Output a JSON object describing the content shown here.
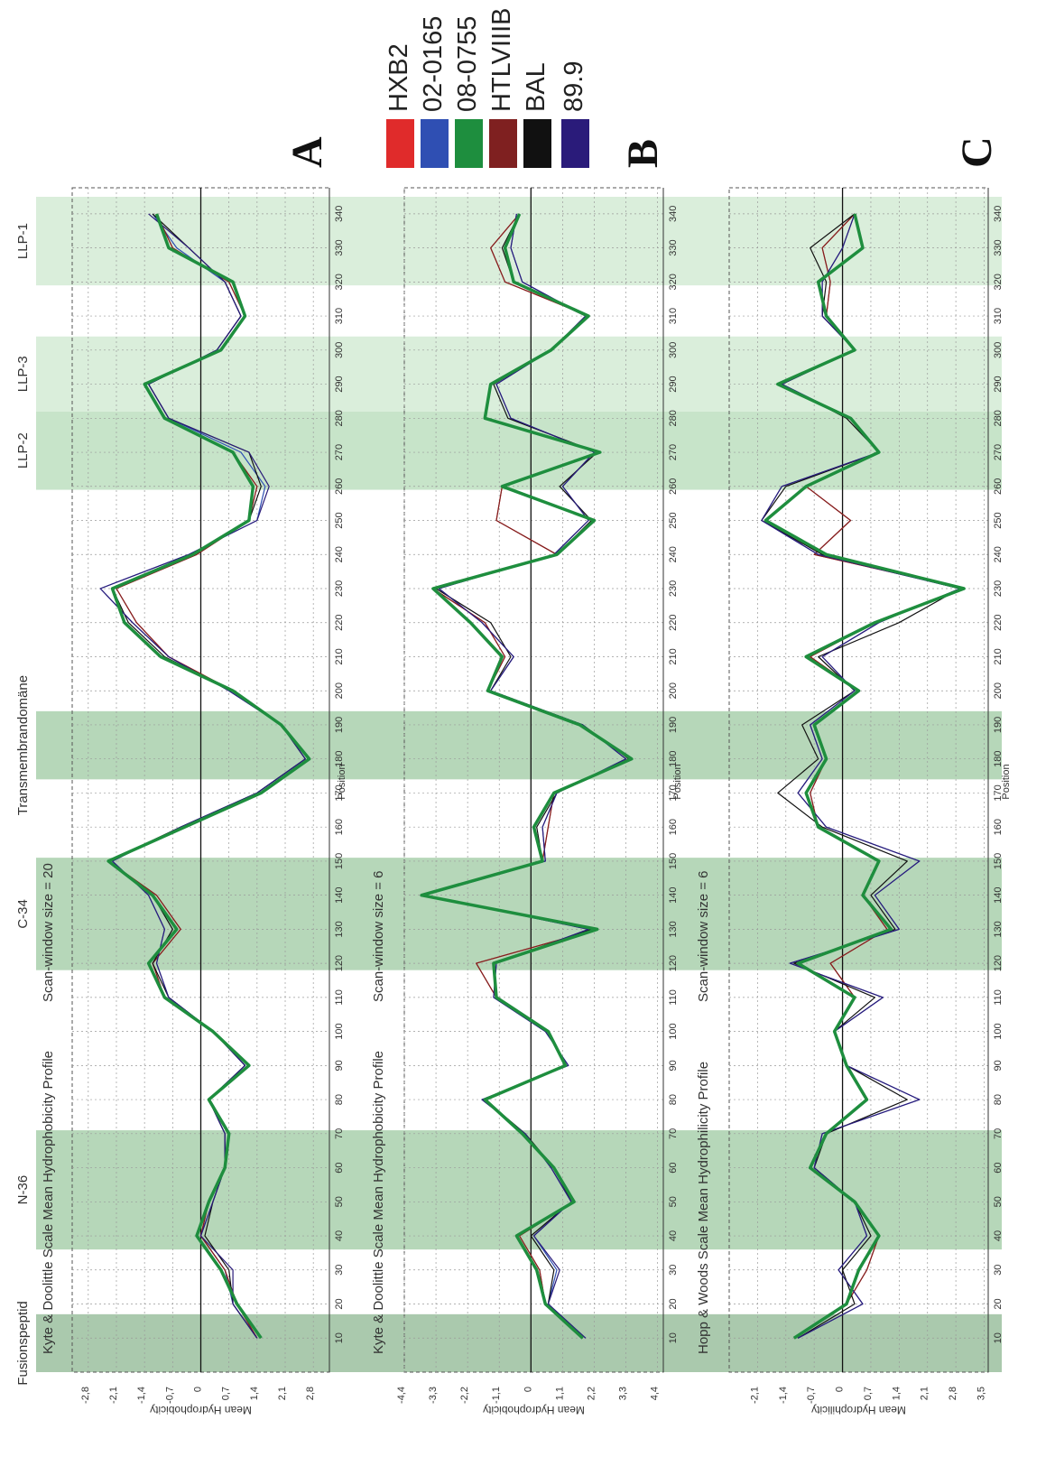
{
  "legend": {
    "entries": [
      {
        "label": "HXB2",
        "color": "#e02b2b"
      },
      {
        "label": "02-0165",
        "color": "#2f4fb3"
      },
      {
        "label": "08-0755",
        "color": "#1e8e3e"
      },
      {
        "label": "HTLVIIIB",
        "color": "#7f2020"
      },
      {
        "label": "BAL",
        "color": "#111111"
      },
      {
        "label": "89.9",
        "color": "#2a1b7a"
      }
    ]
  },
  "regions": [
    {
      "label": "Fusionspeptid",
      "start": 0,
      "end": 17,
      "color": "#9bbf9f"
    },
    {
      "label": "N-36",
      "start": 36,
      "end": 71,
      "color": "#a9d0ad"
    },
    {
      "label": "C-34",
      "start": 118,
      "end": 151,
      "color": "#a9d0ad"
    },
    {
      "label": "Transmembrandomäne",
      "start": 174,
      "end": 194,
      "color": "#a9d0ad"
    },
    {
      "label": "LLP-2",
      "start": 259,
      "end": 282,
      "color": "#bddfc0"
    },
    {
      "label": "LLP-3",
      "start": 282,
      "end": 304,
      "color": "#d4ebd5"
    },
    {
      "label": "LLP-1",
      "start": 319,
      "end": 345,
      "color": "#d4ebd5"
    }
  ],
  "chart_data": [
    {
      "panel": "A",
      "type": "line",
      "title": "Kyte & Doolittle Scale Mean Hydrophobicity Profile",
      "subtitle": "Scan-window size = 20",
      "xlabel": "Position",
      "ylabel": "Mean Hydrophobicity",
      "xlim": [
        0,
        345
      ],
      "ylim": [
        -3.2,
        3.2
      ],
      "yticks": [
        "2,8",
        "2,1",
        "1,4",
        "0,7",
        "0",
        "-0,7",
        "-1,4",
        "-2,1",
        "-2,8"
      ],
      "xticks": [
        10,
        20,
        30,
        40,
        50,
        60,
        70,
        80,
        90,
        100,
        110,
        120,
        130,
        140,
        150,
        160,
        170,
        180,
        190,
        200,
        210,
        220,
        230,
        240,
        250,
        260,
        270,
        280,
        290,
        300,
        310,
        320,
        330,
        340
      ],
      "grid": true,
      "x": [
        10,
        20,
        30,
        40,
        50,
        60,
        70,
        80,
        90,
        100,
        110,
        120,
        130,
        140,
        150,
        160,
        170,
        180,
        190,
        200,
        210,
        220,
        230,
        240,
        250,
        260,
        270,
        280,
        290,
        300,
        310,
        320,
        330,
        340
      ],
      "series": [
        {
          "name": "08-0755",
          "values": [
            1.5,
            0.9,
            0.5,
            -0.1,
            0.2,
            0.6,
            0.7,
            0.2,
            1.2,
            0.3,
            -0.9,
            -1.3,
            -0.6,
            -1.2,
            -2.3,
            -0.4,
            1.5,
            2.7,
            2.0,
            0.8,
            -1.0,
            -1.9,
            -2.2,
            -0.2,
            1.2,
            1.3,
            0.8,
            -0.9,
            -1.4,
            0.5,
            1.1,
            0.8,
            -0.8,
            -1.1
          ]
        },
        {
          "name": "02-0165",
          "values": [
            1.4,
            0.8,
            0.6,
            0.0,
            0.3,
            0.6,
            0.6,
            0.2,
            1.1,
            0.3,
            -0.8,
            -1.1,
            -0.9,
            -1.3,
            -2.2,
            -0.5,
            1.4,
            2.6,
            2.0,
            0.7,
            -0.8,
            -1.7,
            -2.5,
            -0.3,
            1.4,
            1.6,
            1.0,
            -0.8,
            -1.3,
            0.4,
            1.0,
            0.6,
            -0.6,
            -1.2
          ]
        },
        {
          "name": "HXB2",
          "values": [
            1.4,
            0.9,
            0.6,
            0.0,
            0.2,
            0.6,
            0.7,
            0.2,
            1.2,
            0.3,
            -0.9,
            -1.2,
            -0.5,
            -1.1,
            -2.3,
            -0.4,
            1.5,
            2.7,
            2.0,
            0.8,
            -0.8,
            -1.6,
            -2.1,
            -0.1,
            1.2,
            1.4,
            0.8,
            -0.9,
            -1.4,
            0.5,
            1.1,
            0.7,
            -0.7,
            -1.1
          ]
        },
        {
          "name": "HTLVIIIB",
          "values": [
            1.4,
            0.9,
            0.6,
            0.0,
            0.2,
            0.6,
            0.7,
            0.2,
            1.2,
            0.3,
            -0.9,
            -1.2,
            -0.5,
            -1.1,
            -2.3,
            -0.4,
            1.5,
            2.7,
            2.0,
            0.8,
            -0.8,
            -1.6,
            -2.1,
            -0.1,
            1.2,
            1.4,
            0.8,
            -0.9,
            -1.4,
            0.5,
            1.1,
            0.7,
            -0.7,
            -1.1
          ]
        },
        {
          "name": "BAL",
          "values": [
            1.4,
            0.8,
            0.7,
            0.1,
            0.3,
            0.6,
            0.6,
            0.2,
            1.1,
            0.3,
            -0.8,
            -1.2,
            -0.7,
            -1.2,
            -2.3,
            -0.5,
            1.4,
            2.6,
            2.0,
            0.8,
            -0.9,
            -1.8,
            -2.2,
            -0.2,
            1.2,
            1.5,
            1.2,
            -0.8,
            -1.3,
            0.4,
            1.0,
            0.6,
            -0.3,
            -1.2
          ]
        },
        {
          "name": "89.9",
          "values": [
            1.4,
            0.8,
            0.8,
            0.0,
            0.3,
            0.6,
            0.6,
            0.2,
            1.1,
            0.3,
            -0.8,
            -1.1,
            -0.9,
            -1.3,
            -2.2,
            -0.5,
            1.4,
            2.6,
            2.0,
            0.7,
            -0.8,
            -1.7,
            -2.5,
            -0.3,
            1.4,
            1.7,
            1.2,
            -0.8,
            -1.3,
            0.4,
            1.0,
            0.6,
            -0.3,
            -1.3
          ]
        }
      ]
    },
    {
      "panel": "B",
      "type": "line",
      "title": "Kyte & Doolittle Scale Mean Hydrophobicity Profile",
      "subtitle": "Scan-window size = 6",
      "xlabel": "Position",
      "ylabel": "Mean Hydrophobicity",
      "xlim": [
        0,
        345
      ],
      "ylim": [
        -4.4,
        4.6
      ],
      "yticks": [
        "4,4",
        "3,3",
        "2,2",
        "1,1",
        "0",
        "-1,1",
        "-2,2",
        "-3,3",
        "-4,4"
      ],
      "xticks": [
        10,
        20,
        30,
        40,
        50,
        60,
        70,
        80,
        90,
        100,
        110,
        120,
        130,
        140,
        150,
        160,
        170,
        180,
        190,
        200,
        210,
        220,
        230,
        240,
        250,
        260,
        270,
        280,
        290,
        300,
        310,
        320,
        330,
        340
      ],
      "grid": true,
      "x": [
        10,
        20,
        30,
        40,
        50,
        60,
        70,
        80,
        90,
        100,
        110,
        120,
        130,
        140,
        150,
        160,
        170,
        180,
        190,
        200,
        210,
        220,
        230,
        240,
        250,
        260,
        270,
        280,
        290,
        300,
        310,
        320,
        330,
        340
      ],
      "series": [
        {
          "name": "08-0755",
          "values": [
            1.8,
            0.5,
            0.2,
            -0.5,
            1.5,
            0.8,
            -0.3,
            -1.6,
            1.2,
            0.6,
            -1.2,
            -1.3,
            2.3,
            -3.8,
            0.4,
            0.1,
            0.8,
            3.5,
            1.7,
            -1.5,
            -1.0,
            -2.1,
            -3.4,
            0.9,
            2.2,
            -1.0,
            2.4,
            -1.6,
            -1.4,
            0.7,
            2.0,
            -0.6,
            -0.9,
            -0.4
          ]
        },
        {
          "name": "02-0165",
          "values": [
            1.9,
            0.6,
            0.9,
            0.1,
            1.4,
            0.7,
            -0.2,
            -1.7,
            1.3,
            0.5,
            -1.3,
            -1.2,
            2.0,
            -3.7,
            0.5,
            0.4,
            0.9,
            3.3,
            1.8,
            -1.4,
            -0.6,
            -1.7,
            -3.2,
            0.8,
            2.0,
            1.1,
            2.2,
            -0.7,
            -1.2,
            0.7,
            1.9,
            -0.3,
            -0.7,
            -0.5
          ]
        },
        {
          "name": "HXB2",
          "values": [
            1.8,
            0.5,
            0.3,
            -0.4,
            1.5,
            0.8,
            -0.3,
            -1.6,
            1.2,
            0.6,
            -1.2,
            -1.9,
            2.3,
            -3.8,
            0.4,
            0.6,
            0.8,
            3.5,
            1.7,
            -1.5,
            -0.9,
            -1.6,
            -3.4,
            0.9,
            -1.2,
            -1.0,
            2.4,
            -1.6,
            -1.4,
            0.7,
            2.0,
            -0.9,
            -1.4,
            -0.4
          ]
        },
        {
          "name": "HTLVIIIB",
          "values": [
            1.8,
            0.5,
            0.3,
            -0.4,
            1.5,
            0.8,
            -0.3,
            -1.6,
            1.2,
            0.6,
            -1.2,
            -1.9,
            2.3,
            -3.8,
            0.4,
            0.6,
            0.8,
            3.5,
            1.7,
            -1.5,
            -0.9,
            -1.6,
            -3.4,
            0.9,
            -1.2,
            -1.0,
            2.4,
            -1.6,
            -1.4,
            0.7,
            2.0,
            -0.9,
            -1.4,
            -0.4
          ]
        },
        {
          "name": "BAL",
          "values": [
            1.8,
            0.6,
            0.8,
            0.0,
            1.4,
            0.8,
            -0.2,
            -1.6,
            1.2,
            0.6,
            -1.2,
            -1.3,
            2.1,
            -3.8,
            0.4,
            0.2,
            0.9,
            3.4,
            1.8,
            -1.4,
            -0.7,
            -1.4,
            -3.3,
            0.9,
            2.1,
            1.0,
            2.3,
            -0.8,
            -1.3,
            0.7,
            1.9,
            -0.6,
            -1.0,
            -0.4
          ]
        },
        {
          "name": "89.9",
          "values": [
            1.9,
            0.6,
            1.0,
            0.1,
            1.4,
            0.7,
            -0.2,
            -1.7,
            1.3,
            0.5,
            -1.3,
            -1.2,
            2.0,
            -3.7,
            0.5,
            0.4,
            0.9,
            3.3,
            1.8,
            -1.4,
            -0.6,
            -1.7,
            -3.2,
            0.8,
            2.0,
            1.1,
            2.2,
            -0.7,
            -1.2,
            0.7,
            1.9,
            -0.3,
            -0.7,
            -0.5
          ]
        }
      ]
    },
    {
      "panel": "C",
      "type": "line",
      "title": "Hopp & Woods Scale Mean Hydrophilicity Profile",
      "subtitle": "Scan-window size = 6",
      "xlabel": "Position",
      "ylabel": "Mean Hydrophilicity",
      "xlim": [
        0,
        345
      ],
      "ylim": [
        -2.8,
        3.6
      ],
      "yticks": [
        "3,5",
        "2,8",
        "2,1",
        "1,4",
        "0,7",
        "0",
        "-0,7",
        "-1,4",
        "-2,1"
      ],
      "xticks": [
        10,
        20,
        30,
        40,
        50,
        60,
        70,
        80,
        90,
        100,
        110,
        120,
        130,
        140,
        150,
        160,
        170,
        180,
        190,
        200,
        210,
        220,
        230,
        240,
        250,
        260,
        270,
        280,
        290,
        300,
        310,
        320,
        330,
        340
      ],
      "grid": true,
      "x": [
        10,
        20,
        30,
        40,
        50,
        60,
        70,
        80,
        90,
        100,
        110,
        120,
        130,
        140,
        150,
        160,
        170,
        180,
        190,
        200,
        210,
        220,
        230,
        240,
        250,
        260,
        270,
        280,
        290,
        300,
        310,
        320,
        330,
        340
      ],
      "series": [
        {
          "name": "08-0755",
          "values": [
            -1.2,
            0.1,
            0.4,
            0.9,
            0.3,
            -0.8,
            -0.4,
            0.6,
            0.1,
            -0.2,
            0.3,
            -1.1,
            1.2,
            0.5,
            0.9,
            -0.6,
            -0.9,
            -0.4,
            -0.7,
            0.4,
            -0.9,
            0.8,
            3.0,
            -0.4,
            -1.9,
            -0.9,
            0.9,
            0.2,
            -1.6,
            0.3,
            -0.4,
            -0.6,
            0.5,
            0.3
          ]
        },
        {
          "name": "02-0165",
          "values": [
            -1.1,
            0.5,
            -0.1,
            0.6,
            0.3,
            -0.7,
            -0.5,
            1.9,
            0.1,
            -0.2,
            1.0,
            -1.3,
            1.4,
            0.8,
            1.9,
            -0.4,
            -1.1,
            -0.5,
            -0.8,
            0.3,
            -0.5,
            0.9,
            2.9,
            -0.6,
            -2.0,
            -1.5,
            0.9,
            0.2,
            -1.5,
            0.3,
            -0.5,
            -0.5,
            0.0,
            0.3
          ]
        },
        {
          "name": "HXB2",
          "values": [
            -1.2,
            0.1,
            0.6,
            0.9,
            0.3,
            -0.8,
            -0.4,
            0.6,
            0.1,
            -0.2,
            0.3,
            -0.3,
            1.1,
            0.5,
            0.9,
            -0.6,
            -0.8,
            -0.4,
            -0.7,
            0.4,
            -0.8,
            0.8,
            3.0,
            -0.7,
            0.2,
            -0.9,
            0.9,
            0.2,
            -1.6,
            0.3,
            -0.4,
            -0.3,
            -0.5,
            0.3
          ]
        },
        {
          "name": "HTLVIIIB",
          "values": [
            -1.2,
            0.1,
            0.6,
            0.9,
            0.3,
            -0.8,
            -0.4,
            0.6,
            0.1,
            -0.2,
            0.3,
            -0.3,
            1.1,
            0.5,
            0.9,
            -0.6,
            -0.8,
            -0.4,
            -0.7,
            0.4,
            -0.8,
            0.8,
            3.0,
            -0.7,
            0.2,
            -0.9,
            0.9,
            0.2,
            -1.6,
            0.3,
            -0.4,
            -0.3,
            -0.5,
            0.3
          ]
        },
        {
          "name": "BAL",
          "values": [
            -1.1,
            0.3,
            0.0,
            0.7,
            0.3,
            -0.7,
            -0.4,
            1.6,
            0.1,
            -0.2,
            0.8,
            -1.2,
            1.3,
            0.7,
            1.6,
            -0.5,
            -1.6,
            -0.6,
            -1.0,
            0.3,
            -0.6,
            1.4,
            2.9,
            -0.5,
            -2.0,
            -1.4,
            0.9,
            0.1,
            -1.5,
            0.3,
            -0.5,
            -0.4,
            -0.8,
            0.3
          ]
        },
        {
          "name": "89.9",
          "values": [
            -1.1,
            0.5,
            -0.1,
            0.6,
            0.3,
            -0.7,
            -0.5,
            1.9,
            0.1,
            -0.2,
            1.0,
            -1.3,
            1.4,
            0.8,
            1.9,
            -0.4,
            -1.1,
            -0.5,
            -0.8,
            0.3,
            -0.5,
            0.9,
            2.9,
            -0.6,
            -2.0,
            -1.5,
            0.9,
            0.2,
            -1.5,
            0.3,
            -0.5,
            -0.5,
            0.0,
            0.3
          ]
        }
      ]
    }
  ],
  "panel_letters": [
    "A",
    "B",
    "C"
  ]
}
